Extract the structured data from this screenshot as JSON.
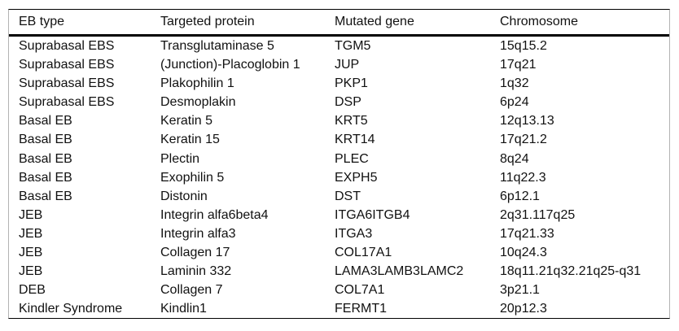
{
  "table": {
    "headers": [
      "EB type",
      "Targeted protein",
      "Mutated gene",
      "Chromosome"
    ],
    "column_keys": [
      "eb-type",
      "targeted-protein",
      "mutated-gene",
      "chromosome"
    ],
    "rows": [
      [
        "Suprabasal EBS",
        "Transglutaminase 5",
        "TGM5",
        "15q15.2"
      ],
      [
        "Suprabasal EBS",
        "(Junction)-Placoglobin 1",
        "JUP",
        "17q21"
      ],
      [
        "Suprabasal EBS",
        "Plakophilin 1",
        "PKP1",
        "1q32"
      ],
      [
        "Suprabasal EBS",
        "Desmoplakin",
        "DSP",
        "6p24"
      ],
      [
        "Basal EB",
        "Keratin 5",
        "KRT5",
        "12q13.13"
      ],
      [
        "Basal EB",
        "Keratin 15",
        "KRT14",
        "17q21.2"
      ],
      [
        "Basal EB",
        "Plectin",
        "PLEC",
        "8q24"
      ],
      [
        "Basal EB",
        "Exophilin 5",
        "EXPH5",
        "11q22.3"
      ],
      [
        "Basal EB",
        "Distonin",
        "DST",
        "6p12.1"
      ],
      [
        "JEB",
        "Integrin alfa6beta4",
        "ITGA6ITGB4",
        "2q31.117q25"
      ],
      [
        "JEB",
        "Integrin alfa3",
        "ITGA3",
        "17q21.33"
      ],
      [
        "JEB",
        "Collagen 17",
        "COL17A1",
        "10q24.3"
      ],
      [
        "JEB",
        "Laminin 332",
        "LAMA3LAMB3LAMC2",
        "18q11.21q32.21q25-q31"
      ],
      [
        "DEB",
        "Collagen 7",
        "COL7A1",
        "3p21.1"
      ],
      [
        "Kindler Syndrome",
        "Kindlin1",
        "FERMT1",
        "20p12.3"
      ]
    ],
    "colors": {
      "rule": "#000000",
      "frame": "#b3b3b3",
      "text": "#111111",
      "background": "#ffffff"
    }
  },
  "chart_data": {
    "type": "table",
    "title": "",
    "columns": [
      "EB type",
      "Targeted protein",
      "Mutated gene",
      "Chromosome"
    ],
    "rows": [
      [
        "Suprabasal EBS",
        "Transglutaminase 5",
        "TGM5",
        "15q15.2"
      ],
      [
        "Suprabasal EBS",
        "(Junction)-Placoglobin 1",
        "JUP",
        "17q21"
      ],
      [
        "Suprabasal EBS",
        "Plakophilin 1",
        "PKP1",
        "1q32"
      ],
      [
        "Suprabasal EBS",
        "Desmoplakin",
        "DSP",
        "6p24"
      ],
      [
        "Basal EB",
        "Keratin 5",
        "KRT5",
        "12q13.13"
      ],
      [
        "Basal EB",
        "Keratin 15",
        "KRT14",
        "17q21.2"
      ],
      [
        "Basal EB",
        "Plectin",
        "PLEC",
        "8q24"
      ],
      [
        "Basal EB",
        "Exophilin 5",
        "EXPH5",
        "11q22.3"
      ],
      [
        "Basal EB",
        "Distonin",
        "DST",
        "6p12.1"
      ],
      [
        "JEB",
        "Integrin alfa6beta4",
        "ITGA6ITGB4",
        "2q31.117q25"
      ],
      [
        "JEB",
        "Integrin alfa3",
        "ITGA3",
        "17q21.33"
      ],
      [
        "JEB",
        "Collagen 17",
        "COL17A1",
        "10q24.3"
      ],
      [
        "JEB",
        "Laminin 332",
        "LAMA3LAMB3LAMC2",
        "18q11.21q32.21q25-q31"
      ],
      [
        "DEB",
        "Collagen 7",
        "COL7A1",
        "3p21.1"
      ],
      [
        "Kindler Syndrome",
        "Kindlin1",
        "FERMT1",
        "20p12.3"
      ]
    ]
  }
}
